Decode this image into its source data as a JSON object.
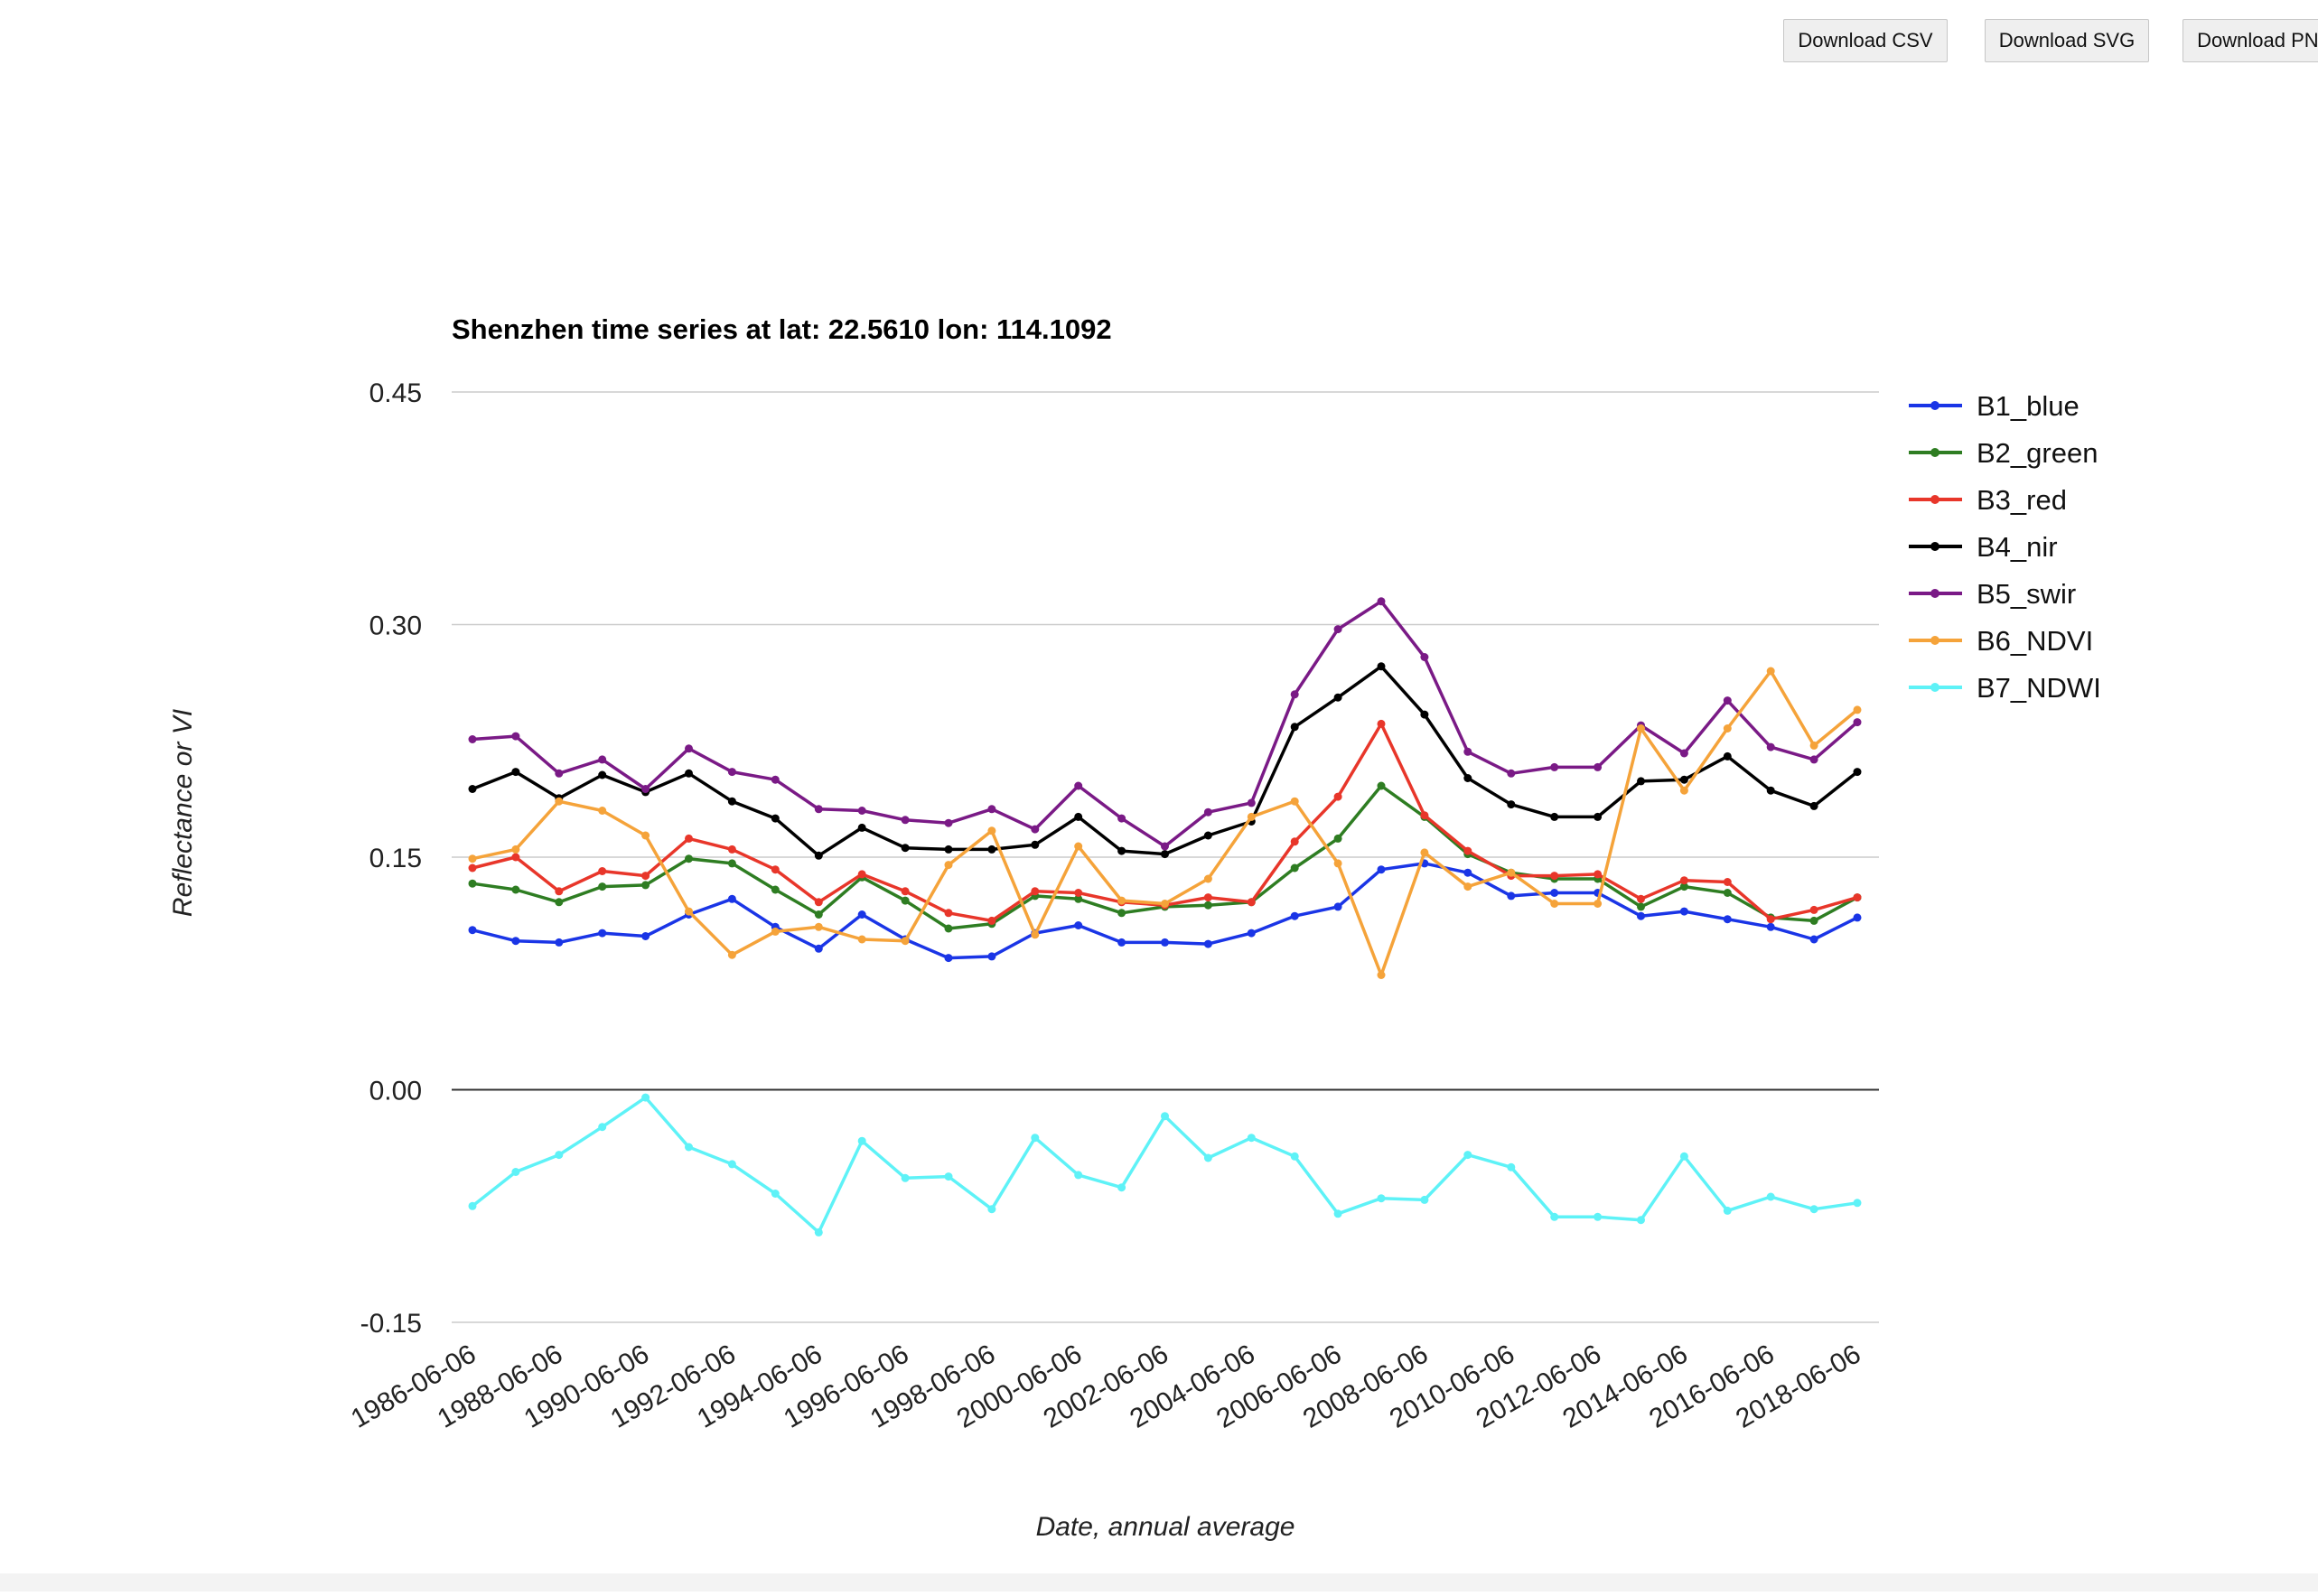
{
  "toolbar": {
    "download_csv": "Download CSV",
    "download_svg": "Download SVG",
    "download_png": "Download PNG"
  },
  "chart_data": {
    "type": "line",
    "title": "Shenzhen time series at lat: 22.5610 lon: 114.1092",
    "xlabel": "Date, annual average",
    "ylabel": "Reflectance or VI",
    "ylim": [
      -0.15,
      0.45
    ],
    "yticks": [
      "0.45",
      "0.30",
      "0.15",
      "0.00",
      "-0.15"
    ],
    "ytick_values": [
      0.45,
      0.3,
      0.15,
      0.0,
      -0.15
    ],
    "xticks": [
      "1986-06-06",
      "1988-06-06",
      "1990-06-06",
      "1992-06-06",
      "1994-06-06",
      "1996-06-06",
      "1998-06-06",
      "2000-06-06",
      "2002-06-06",
      "2004-06-06",
      "2006-06-06",
      "2008-06-06",
      "2010-06-06",
      "2012-06-06",
      "2014-06-06",
      "2016-06-06",
      "2018-06-06"
    ],
    "x": [
      1986,
      1987,
      1988,
      1989,
      1990,
      1991,
      1992,
      1993,
      1994,
      1995,
      1996,
      1997,
      1998,
      1999,
      2000,
      2001,
      2002,
      2003,
      2004,
      2005,
      2006,
      2007,
      2008,
      2009,
      2010,
      2011,
      2012,
      2013,
      2014,
      2015,
      2016,
      2017,
      2018
    ],
    "grid": true,
    "legend_position": "right",
    "series": [
      {
        "name": "B1_blue",
        "color": "#1a35e6",
        "values": [
          0.103,
          0.096,
          0.095,
          0.101,
          0.099,
          0.113,
          0.123,
          0.105,
          0.091,
          0.113,
          0.097,
          0.085,
          0.086,
          0.101,
          0.106,
          0.095,
          0.095,
          0.094,
          0.101,
          0.112,
          0.118,
          0.142,
          0.146,
          0.14,
          0.125,
          0.127,
          0.127,
          0.112,
          0.115,
          0.11,
          0.105,
          0.097,
          0.111
        ]
      },
      {
        "name": "B2_green",
        "color": "#2e7d22",
        "values": [
          0.133,
          0.129,
          0.121,
          0.131,
          0.132,
          0.149,
          0.146,
          0.129,
          0.113,
          0.137,
          0.122,
          0.104,
          0.107,
          0.125,
          0.123,
          0.114,
          0.118,
          0.119,
          0.121,
          0.143,
          0.162,
          0.196,
          0.176,
          0.152,
          0.14,
          0.136,
          0.136,
          0.118,
          0.131,
          0.127,
          0.111,
          0.109,
          0.124
        ]
      },
      {
        "name": "B3_red",
        "color": "#e8362a",
        "values": [
          0.143,
          0.15,
          0.128,
          0.141,
          0.138,
          0.162,
          0.155,
          0.142,
          0.121,
          0.139,
          0.128,
          0.114,
          0.109,
          0.128,
          0.127,
          0.121,
          0.119,
          0.124,
          0.121,
          0.16,
          0.189,
          0.236,
          0.177,
          0.154,
          0.138,
          0.138,
          0.139,
          0.123,
          0.135,
          0.134,
          0.11,
          0.116,
          0.124
        ]
      },
      {
        "name": "B4_nir",
        "color": "#000000",
        "values": [
          0.194,
          0.205,
          0.188,
          0.203,
          0.192,
          0.204,
          0.186,
          0.175,
          0.151,
          0.169,
          0.156,
          0.155,
          0.155,
          0.158,
          0.176,
          0.154,
          0.152,
          0.164,
          0.173,
          0.234,
          0.253,
          0.273,
          0.242,
          0.201,
          0.184,
          0.176,
          0.176,
          0.199,
          0.2,
          0.215,
          0.193,
          0.183,
          0.205
        ]
      },
      {
        "name": "B5_swir",
        "color": "#7a1a86",
        "values": [
          0.226,
          0.228,
          0.204,
          0.213,
          0.194,
          0.22,
          0.205,
          0.2,
          0.181,
          0.18,
          0.174,
          0.172,
          0.181,
          0.168,
          0.196,
          0.175,
          0.157,
          0.179,
          0.185,
          0.255,
          0.297,
          0.315,
          0.279,
          0.218,
          0.204,
          0.208,
          0.208,
          0.235,
          0.217,
          0.251,
          0.221,
          0.213,
          0.237
        ]
      },
      {
        "name": "B6_NDVI",
        "color": "#f5a33a",
        "values": [
          0.149,
          0.155,
          0.186,
          0.18,
          0.164,
          0.115,
          0.087,
          0.102,
          0.105,
          0.097,
          0.096,
          0.145,
          0.167,
          0.1,
          0.157,
          0.122,
          0.12,
          0.136,
          0.176,
          0.186,
          0.146,
          0.074,
          0.153,
          0.131,
          0.14,
          0.12,
          0.12,
          0.233,
          0.193,
          0.233,
          0.27,
          0.222,
          0.245
        ]
      },
      {
        "name": "B7_NDWI",
        "color": "#5ef2f7",
        "values": [
          -0.075,
          -0.053,
          -0.042,
          -0.024,
          -0.005,
          -0.037,
          -0.048,
          -0.067,
          -0.092,
          -0.033,
          -0.057,
          -0.056,
          -0.077,
          -0.031,
          -0.055,
          -0.063,
          -0.017,
          -0.044,
          -0.031,
          -0.043,
          -0.08,
          -0.07,
          -0.071,
          -0.042,
          -0.05,
          -0.082,
          -0.082,
          -0.084,
          -0.043,
          -0.078,
          -0.069,
          -0.077,
          -0.073
        ]
      }
    ]
  }
}
